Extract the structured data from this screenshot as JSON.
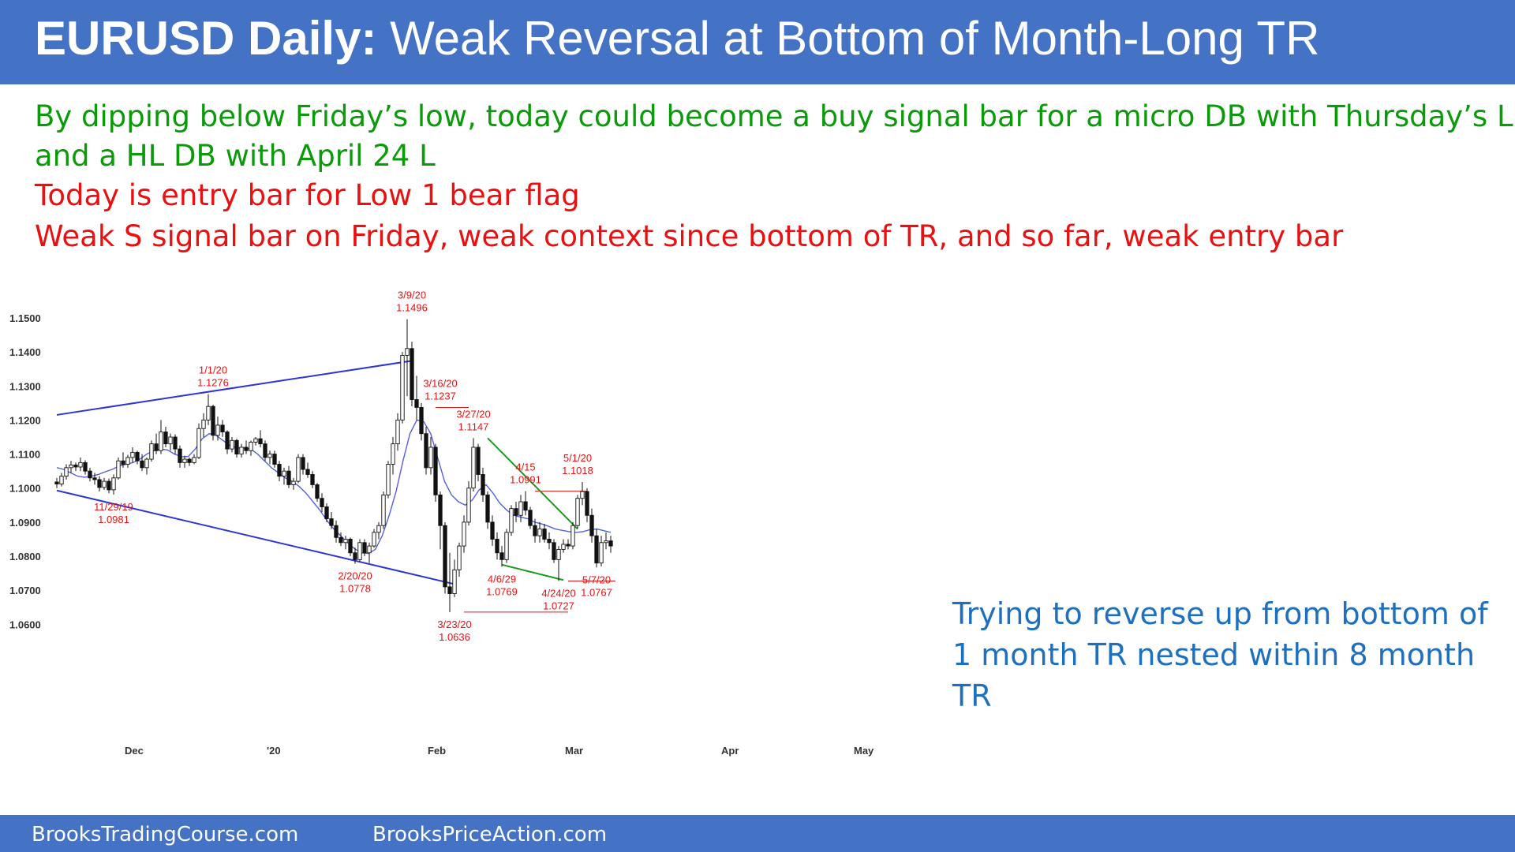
{
  "title": {
    "bold": "EURUSD Daily:",
    "rest": "Weak Reversal at Bottom of Month-Long TR"
  },
  "notes": [
    {
      "text": "By dipping below Friday’s low, today could become a buy signal bar for a micro DB with Thursday’s L",
      "color": "#0a9a0a"
    },
    {
      "text": "and a HL DB with April 24 L",
      "color": "#0a9a0a"
    },
    {
      "text": "Today is entry bar for Low 1 bear flag",
      "color": "#e81010"
    },
    {
      "text": "Weak S signal bar on Friday, weak context since bottom of TR, and so far, weak entry bar",
      "color": "#e81010"
    }
  ],
  "side_note": [
    "Trying to reverse up from bottom of",
    "1 month TR nested within 8 month TR"
  ],
  "footer": {
    "left": "BrooksTradingCourse.com",
    "right": "BrooksPriceAction.com"
  },
  "colors": {
    "banner": "#4472c4",
    "annotation": "#e81010",
    "trendline": "#2f35d4",
    "wedge": "#1c9a1c",
    "ema": "#5560dd"
  },
  "chart_data": {
    "type": "candlestick",
    "ylim": [
      1.058,
      1.153
    ],
    "yticks": [
      "1.1500",
      "1.1400",
      "1.1300",
      "1.1200",
      "1.1100",
      "1.1000",
      "1.0900",
      "1.0800",
      "1.0700",
      "1.0600"
    ],
    "xticks": [
      {
        "label": "Dec",
        "bar": 16
      },
      {
        "label": "'20",
        "bar": 46
      },
      {
        "label": "Feb",
        "bar": 80
      },
      {
        "label": "Mar",
        "bar": 109
      },
      {
        "label": "Apr",
        "bar": 142
      },
      {
        "label": "May",
        "bar": 170
      }
    ],
    "ohlc": [
      [
        1.1018,
        1.103,
        1.1,
        1.1012
      ],
      [
        1.1012,
        1.1045,
        1.1005,
        1.1035
      ],
      [
        1.1035,
        1.107,
        1.1025,
        1.106
      ],
      [
        1.106,
        1.108,
        1.1045,
        1.1068
      ],
      [
        1.1068,
        1.1075,
        1.105,
        1.1062
      ],
      [
        1.1062,
        1.109,
        1.105,
        1.1075
      ],
      [
        1.1075,
        1.1082,
        1.104,
        1.105
      ],
      [
        1.105,
        1.106,
        1.102,
        1.103
      ],
      [
        1.103,
        1.1045,
        1.101,
        1.1025
      ],
      [
        1.1025,
        1.1035,
        1.099,
        1.1002
      ],
      [
        1.1002,
        1.103,
        1.0995,
        1.102
      ],
      [
        1.102,
        1.1028,
        1.0985,
        1.0995
      ],
      [
        1.0995,
        1.104,
        1.0981,
        1.103
      ],
      [
        1.103,
        1.109,
        1.1025,
        1.108
      ],
      [
        1.108,
        1.1105,
        1.106,
        1.107
      ],
      [
        1.107,
        1.1098,
        1.106,
        1.109
      ],
      [
        1.109,
        1.112,
        1.1075,
        1.1105
      ],
      [
        1.1105,
        1.111,
        1.107,
        1.108
      ],
      [
        1.108,
        1.11,
        1.105,
        1.106
      ],
      [
        1.106,
        1.109,
        1.104,
        1.1085
      ],
      [
        1.1085,
        1.114,
        1.1078,
        1.113
      ],
      [
        1.113,
        1.116,
        1.11,
        1.111
      ],
      [
        1.111,
        1.12,
        1.11,
        1.1165
      ],
      [
        1.1165,
        1.118,
        1.112,
        1.113
      ],
      [
        1.113,
        1.116,
        1.111,
        1.115
      ],
      [
        1.115,
        1.1158,
        1.11,
        1.1115
      ],
      [
        1.1115,
        1.1125,
        1.106,
        1.1075
      ],
      [
        1.1075,
        1.1095,
        1.106,
        1.1085
      ],
      [
        1.1085,
        1.109,
        1.1065,
        1.1075
      ],
      [
        1.1075,
        1.11,
        1.107,
        1.109
      ],
      [
        1.109,
        1.119,
        1.1085,
        1.1175
      ],
      [
        1.1175,
        1.122,
        1.115,
        1.12
      ],
      [
        1.12,
        1.1276,
        1.1185,
        1.124
      ],
      [
        1.124,
        1.1245,
        1.114,
        1.1155
      ],
      [
        1.1155,
        1.121,
        1.114,
        1.1185
      ],
      [
        1.1185,
        1.12,
        1.115,
        1.1165
      ],
      [
        1.1165,
        1.117,
        1.11,
        1.1115
      ],
      [
        1.1115,
        1.115,
        1.1105,
        1.114
      ],
      [
        1.114,
        1.1145,
        1.109,
        1.11
      ],
      [
        1.11,
        1.113,
        1.109,
        1.112
      ],
      [
        1.112,
        1.114,
        1.11,
        1.111
      ],
      [
        1.111,
        1.114,
        1.1095,
        1.1135
      ],
      [
        1.1135,
        1.115,
        1.1125,
        1.1145
      ],
      [
        1.1145,
        1.117,
        1.112,
        1.113
      ],
      [
        1.113,
        1.114,
        1.108,
        1.109
      ],
      [
        1.109,
        1.111,
        1.107,
        1.11
      ],
      [
        1.11,
        1.111,
        1.106,
        1.107
      ],
      [
        1.107,
        1.108,
        1.102,
        1.1035
      ],
      [
        1.1035,
        1.106,
        1.101,
        1.105
      ],
      [
        1.105,
        1.1065,
        1.1,
        1.101
      ],
      [
        1.101,
        1.103,
        1.0995,
        1.102
      ],
      [
        1.102,
        1.11,
        1.1015,
        1.109
      ],
      [
        1.109,
        1.11,
        1.104,
        1.1055
      ],
      [
        1.1055,
        1.1075,
        1.103,
        1.104
      ],
      [
        1.104,
        1.105,
        1.1,
        1.101
      ],
      [
        1.101,
        1.1015,
        1.096,
        1.097
      ],
      [
        1.097,
        1.0985,
        1.093,
        1.0945
      ],
      [
        1.0945,
        1.0955,
        1.09,
        1.091
      ],
      [
        1.091,
        1.093,
        1.088,
        1.089
      ],
      [
        1.089,
        1.0905,
        1.084,
        1.0855
      ],
      [
        1.0855,
        1.087,
        1.083,
        1.084
      ],
      [
        1.084,
        1.086,
        1.082,
        1.085
      ],
      [
        1.085,
        1.0855,
        1.08,
        1.081
      ],
      [
        1.081,
        1.0825,
        1.0778,
        1.079
      ],
      [
        1.079,
        1.085,
        1.0785,
        1.084
      ],
      [
        1.084,
        1.085,
        1.08,
        1.081
      ],
      [
        1.081,
        1.084,
        1.078,
        1.083
      ],
      [
        1.083,
        1.088,
        1.0825,
        1.087
      ],
      [
        1.087,
        1.09,
        1.085,
        1.089
      ],
      [
        1.089,
        1.099,
        1.088,
        1.098
      ],
      [
        1.098,
        1.108,
        1.097,
        1.107
      ],
      [
        1.107,
        1.115,
        1.104,
        1.113
      ],
      [
        1.113,
        1.122,
        1.111,
        1.12
      ],
      [
        1.12,
        1.14,
        1.119,
        1.139
      ],
      [
        1.139,
        1.1496,
        1.127,
        1.141
      ],
      [
        1.141,
        1.143,
        1.124,
        1.126
      ],
      [
        1.126,
        1.133,
        1.12,
        1.1237
      ],
      [
        1.1237,
        1.125,
        1.114,
        1.116
      ],
      [
        1.116,
        1.118,
        1.104,
        1.106
      ],
      [
        1.106,
        1.115,
        1.104,
        1.112
      ],
      [
        1.112,
        1.113,
        1.096,
        1.098
      ],
      [
        1.098,
        1.099,
        1.082,
        1.089
      ],
      [
        1.089,
        1.09,
        1.069,
        1.071
      ],
      [
        1.071,
        1.081,
        1.0636,
        1.069
      ],
      [
        1.069,
        1.079,
        1.068,
        1.076
      ],
      [
        1.076,
        1.084,
        1.074,
        1.083
      ],
      [
        1.083,
        1.092,
        1.081,
        1.09
      ],
      [
        1.09,
        1.102,
        1.089,
        1.1
      ],
      [
        1.1,
        1.1147,
        1.099,
        1.112
      ],
      [
        1.112,
        1.113,
        1.102,
        1.104
      ],
      [
        1.104,
        1.106,
        1.096,
        1.098
      ],
      [
        1.098,
        1.099,
        1.088,
        1.09
      ],
      [
        1.09,
        1.092,
        1.083,
        1.085
      ],
      [
        1.085,
        1.087,
        1.079,
        1.081
      ],
      [
        1.081,
        1.083,
        1.0769,
        1.079
      ],
      [
        1.079,
        1.088,
        1.078,
        1.087
      ],
      [
        1.087,
        1.095,
        1.086,
        1.094
      ],
      [
        1.094,
        1.096,
        1.09,
        1.092
      ],
      [
        1.092,
        1.098,
        1.09,
        1.096
      ],
      [
        1.096,
        1.0991,
        1.092,
        1.0935
      ],
      [
        1.0935,
        1.0945,
        1.088,
        1.089
      ],
      [
        1.089,
        1.091,
        1.084,
        1.086
      ],
      [
        1.086,
        1.09,
        1.084,
        1.088
      ],
      [
        1.088,
        1.0895,
        1.084,
        1.085
      ],
      [
        1.085,
        1.087,
        1.082,
        1.084
      ],
      [
        1.084,
        1.085,
        1.078,
        1.079
      ],
      [
        1.079,
        1.083,
        1.0727,
        1.082
      ],
      [
        1.082,
        1.085,
        1.081,
        1.0835
      ],
      [
        1.0835,
        1.085,
        1.082,
        1.083
      ],
      [
        1.083,
        1.09,
        1.082,
        1.089
      ],
      [
        1.089,
        1.098,
        1.088,
        1.097
      ],
      [
        1.097,
        1.1018,
        1.095,
        1.099
      ],
      [
        1.099,
        1.1,
        1.09,
        1.092
      ],
      [
        1.092,
        1.094,
        1.084,
        1.086
      ],
      [
        1.086,
        1.088,
        1.0767,
        1.078
      ],
      [
        1.078,
        1.086,
        1.077,
        1.084
      ],
      [
        1.084,
        1.087,
        1.082,
        1.0845
      ],
      [
        1.0845,
        1.086,
        1.081,
        1.083
      ]
    ],
    "ema": [
      1.106,
      1.1055,
      1.1045,
      1.1035,
      1.1032,
      1.1035,
      1.104,
      1.1048,
      1.1055,
      1.1065,
      1.107,
      1.1075,
      1.1085,
      1.11,
      1.111,
      1.1115,
      1.1112,
      1.11,
      1.1092,
      1.1093,
      1.1115,
      1.1145,
      1.116,
      1.1155,
      1.114,
      1.1125,
      1.1118,
      1.1118,
      1.1115,
      1.11,
      1.108,
      1.106,
      1.1045,
      1.103,
      1.102,
      1.1005,
      1.0985,
      1.096,
      1.0935,
      1.0905,
      1.088,
      1.086,
      1.084,
      1.0822,
      1.081,
      1.0808,
      1.082,
      1.086,
      1.092,
      1.099,
      1.108,
      1.116,
      1.12,
      1.1195,
      1.116,
      1.109,
      1.102,
      1.098,
      1.096,
      1.095,
      1.0965,
      1.0995,
      1.101,
      1.0985,
      1.0955,
      1.0935,
      1.092,
      1.0915,
      1.091,
      1.09,
      1.0895,
      1.0888,
      1.088,
      1.0876,
      1.0872,
      1.087,
      1.0872,
      1.0878,
      1.088,
      1.0875,
      1.087
    ],
    "trendlines": [
      {
        "from": [
          0,
          1.1215
        ],
        "to": [
          75,
          1.1374
        ],
        "color": "#2f35d4"
      },
      {
        "from": [
          0,
          1.0993
        ],
        "to": [
          84,
          1.0718
        ],
        "color": "#2f35d4"
      },
      {
        "from": [
          91,
          1.1147
        ],
        "to": [
          110,
          1.088
        ],
        "color": "#1c9a1c"
      },
      {
        "from": [
          94,
          1.0775
        ],
        "to": [
          107,
          1.073
        ],
        "color": "#1c9a1c"
      }
    ],
    "hlines": [
      {
        "from": 80,
        "to": 87,
        "y": 1.1237
      },
      {
        "from": 101,
        "to": 112,
        "y": 1.0991
      },
      {
        "from": 108,
        "to": 118,
        "y": 1.0727
      },
      {
        "from": 86,
        "to": 108,
        "y": 1.0636
      }
    ],
    "annotations": [
      {
        "bar": 33,
        "price_text": "1.1276",
        "date": "1/1/20",
        "pos": "above",
        "price": 1.1276
      },
      {
        "bar": 12,
        "price_text": "1.0981",
        "date": "11/29/19",
        "pos": "below",
        "price": 1.0981
      },
      {
        "bar": 63,
        "price_text": "1.0778",
        "date": "2/20/20",
        "pos": "below",
        "price": 1.0778
      },
      {
        "bar": 75,
        "price_text": "1.1496",
        "date": "3/9/20",
        "pos": "above",
        "price": 1.1496
      },
      {
        "bar": 81,
        "price_text": "1.1237",
        "date": "3/16/20",
        "pos": "above",
        "price": 1.1237
      },
      {
        "bar": 84,
        "price_text": "1.0636",
        "date": "3/23/20",
        "pos": "below",
        "price": 1.0636
      },
      {
        "bar": 88,
        "price_text": "1.1147",
        "date": "3/27/20",
        "pos": "above",
        "price": 1.1147
      },
      {
        "bar": 94,
        "price_text": "1.0769",
        "date": "4/6/29",
        "pos": "below",
        "price": 1.0769
      },
      {
        "bar": 99,
        "price_text": "1.0991",
        "date": "4/15",
        "pos": "above",
        "price": 1.0991
      },
      {
        "bar": 106,
        "price_text": "1.0727",
        "date": "4/24/20",
        "pos": "below",
        "price": 1.0727
      },
      {
        "bar": 110,
        "price_text": "1.1018",
        "date": "5/1/20",
        "pos": "above",
        "price": 1.1018
      },
      {
        "bar": 114,
        "price_text": "1.0767",
        "date": "5/7/20",
        "pos": "below",
        "price": 1.0767
      }
    ]
  }
}
